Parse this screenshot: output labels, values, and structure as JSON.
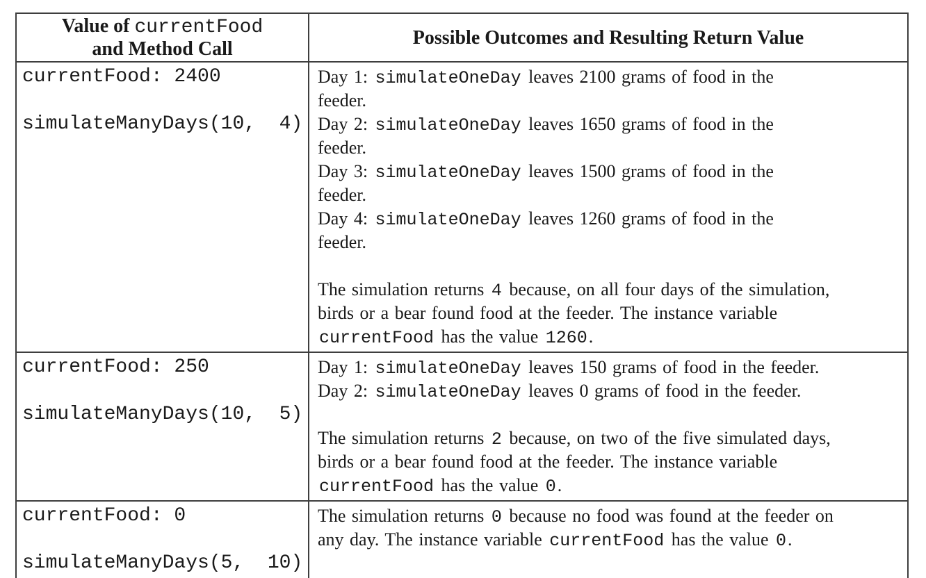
{
  "colors": {
    "background": "#ffffff",
    "border": "#3e3e3e",
    "text": "#1a1a1a"
  },
  "table": {
    "header": {
      "col1_lines": [
        [
          {
            "f": "b",
            "s": "Value of "
          },
          {
            "f": "m",
            "s": "currentFood"
          }
        ],
        [
          {
            "f": "b",
            "s": "and Method Call"
          }
        ]
      ],
      "col2_lines": [
        [
          {
            "f": "b",
            "s": "Possible Outcomes and Resulting Return Value"
          }
        ]
      ]
    },
    "rows": [
      {
        "left_lines": [
          "currentFood: 2400",
          "",
          "simulateManyDays(10,  4)"
        ],
        "right_lines": [
          [
            {
              "f": "r",
              "s": "Day 1: "
            },
            {
              "f": "m",
              "s": "simulateOneDay"
            },
            {
              "f": "r",
              "s": " leaves 2100 grams of food in the"
            }
          ],
          [
            {
              "f": "r",
              "s": "feeder."
            }
          ],
          [
            {
              "f": "r",
              "s": "Day 2: "
            },
            {
              "f": "m",
              "s": "simulateOneDay"
            },
            {
              "f": "r",
              "s": " leaves 1650 grams of food in the"
            }
          ],
          [
            {
              "f": "r",
              "s": "feeder."
            }
          ],
          [
            {
              "f": "r",
              "s": "Day 3: "
            },
            {
              "f": "m",
              "s": "simulateOneDay"
            },
            {
              "f": "r",
              "s": " leaves 1500 grams of food in the"
            }
          ],
          [
            {
              "f": "r",
              "s": "feeder."
            }
          ],
          [
            {
              "f": "r",
              "s": "Day 4: "
            },
            {
              "f": "m",
              "s": "simulateOneDay"
            },
            {
              "f": "r",
              "s": " leaves 1260 grams of food in the"
            }
          ],
          [
            {
              "f": "r",
              "s": "feeder."
            }
          ],
          [],
          [
            {
              "f": "r",
              "s": "The simulation returns "
            },
            {
              "f": "m",
              "s": "4"
            },
            {
              "f": "r",
              "s": " because, on all four days of the simulation,"
            }
          ],
          [
            {
              "f": "r",
              "s": "birds or a bear found food at the feeder. The instance variable"
            }
          ],
          [
            {
              "f": "m",
              "s": "currentFood"
            },
            {
              "f": "r",
              "s": " has the value "
            },
            {
              "f": "m",
              "s": "1260"
            },
            {
              "f": "r",
              "s": "."
            }
          ]
        ]
      },
      {
        "left_lines": [
          "currentFood: 250",
          "",
          "simulateManyDays(10,  5)"
        ],
        "right_lines": [
          [
            {
              "f": "r",
              "s": "Day 1: "
            },
            {
              "f": "m",
              "s": "simulateOneDay"
            },
            {
              "f": "r",
              "s": " leaves 150 grams of food in the feeder."
            }
          ],
          [
            {
              "f": "r",
              "s": "Day 2: "
            },
            {
              "f": "m",
              "s": "simulateOneDay"
            },
            {
              "f": "r",
              "s": " leaves 0 grams of food in the feeder."
            }
          ],
          [],
          [
            {
              "f": "r",
              "s": "The simulation returns "
            },
            {
              "f": "m",
              "s": "2"
            },
            {
              "f": "r",
              "s": " because, on two of the five simulated days,"
            }
          ],
          [
            {
              "f": "r",
              "s": "birds or a bear found food at the feeder. The instance variable"
            }
          ],
          [
            {
              "f": "m",
              "s": "currentFood"
            },
            {
              "f": "r",
              "s": " has the value "
            },
            {
              "f": "m",
              "s": "0"
            },
            {
              "f": "r",
              "s": "."
            }
          ]
        ]
      },
      {
        "left_lines": [
          "currentFood: 0",
          "",
          "simulateManyDays(5,  10)"
        ],
        "right_lines": [
          [
            {
              "f": "r",
              "s": "The simulation returns "
            },
            {
              "f": "m",
              "s": "0"
            },
            {
              "f": "r",
              "s": " because no food was found at the feeder on"
            }
          ],
          [
            {
              "f": "r",
              "s": "any day. The instance variable "
            },
            {
              "f": "m",
              "s": "currentFood"
            },
            {
              "f": "r",
              "s": " has the value "
            },
            {
              "f": "m",
              "s": "0"
            },
            {
              "f": "r",
              "s": "."
            }
          ]
        ]
      }
    ]
  }
}
